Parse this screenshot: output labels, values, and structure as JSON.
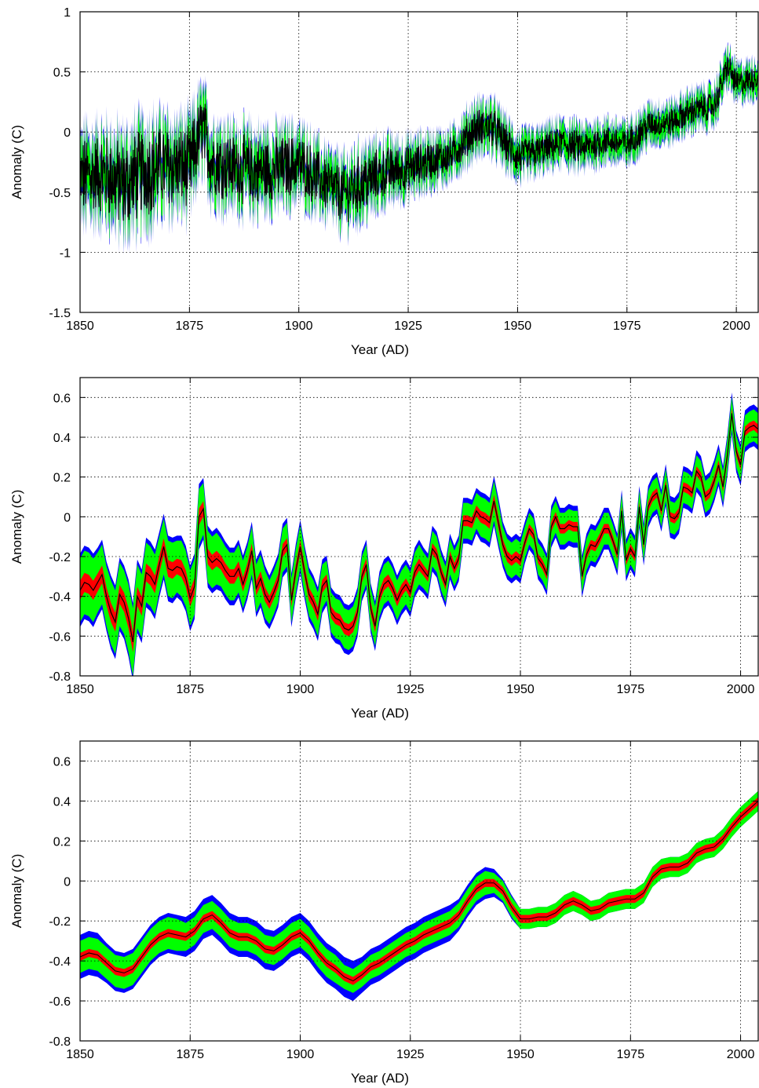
{
  "colors": {
    "outer_band": "#0000ff",
    "mid_band": "#00ff00",
    "inner_band": "#ff0000",
    "center_line": "#000000",
    "grid": "#000000"
  },
  "chart_data": [
    {
      "type": "line",
      "title": "",
      "subtitle": "",
      "xlabel": "Year (AD)",
      "ylabel": "Anomaly (C)",
      "xlim": [
        1850,
        2005
      ],
      "ylim": [
        -1.5,
        1
      ],
      "x_ticks": [
        1850,
        1875,
        1900,
        1925,
        1950,
        1975,
        2000
      ],
      "y_ticks": [
        -1.5,
        -1,
        -0.5,
        0,
        0.5,
        1
      ],
      "x_tick_labels": [
        "1850",
        "1875",
        "1900",
        "1925",
        "1950",
        "1975",
        "2000"
      ],
      "y_tick_labels": [
        "-1.5",
        "-1",
        "-0.5",
        "0",
        "0.5",
        "1"
      ],
      "grid": true,
      "resolution": "monthly",
      "x": [
        1850,
        1855,
        1860,
        1865,
        1870,
        1875,
        1878,
        1880,
        1885,
        1890,
        1895,
        1900,
        1905,
        1910,
        1915,
        1920,
        1925,
        1930,
        1935,
        1940,
        1944,
        1950,
        1955,
        1960,
        1965,
        1970,
        1975,
        1980,
        1985,
        1990,
        1995,
        1998,
        2000,
        2005
      ],
      "series": [
        {
          "role": "center",
          "values": [
            -0.38,
            -0.34,
            -0.44,
            -0.32,
            -0.28,
            -0.3,
            0.05,
            -0.24,
            -0.29,
            -0.33,
            -0.31,
            -0.26,
            -0.4,
            -0.52,
            -0.42,
            -0.33,
            -0.3,
            -0.24,
            -0.19,
            0.02,
            0.05,
            -0.21,
            -0.16,
            -0.09,
            -0.13,
            -0.07,
            -0.1,
            0.06,
            0.08,
            0.18,
            0.22,
            0.55,
            0.4,
            0.45
          ]
        },
        {
          "role": "band_95_half_width",
          "values": [
            0.4,
            0.4,
            0.45,
            0.45,
            0.4,
            0.4,
            0.35,
            0.35,
            0.33,
            0.35,
            0.32,
            0.3,
            0.28,
            0.28,
            0.3,
            0.25,
            0.22,
            0.2,
            0.18,
            0.2,
            0.2,
            0.18,
            0.16,
            0.16,
            0.16,
            0.15,
            0.15,
            0.14,
            0.14,
            0.14,
            0.14,
            0.14,
            0.13,
            0.13
          ]
        }
      ]
    },
    {
      "type": "line",
      "title": "",
      "subtitle": "",
      "xlabel": "Year (AD)",
      "ylabel": "Anomaly (C)",
      "xlim": [
        1850,
        2004
      ],
      "ylim": [
        -0.8,
        0.7
      ],
      "x_ticks": [
        1850,
        1875,
        1900,
        1925,
        1950,
        1975,
        2000
      ],
      "y_ticks": [
        -0.8,
        -0.6,
        -0.4,
        -0.2,
        0,
        0.2,
        0.4,
        0.6
      ],
      "x_tick_labels": [
        "1850",
        "1875",
        "1900",
        "1925",
        "1950",
        "1975",
        "2000"
      ],
      "y_tick_labels": [
        "-0.8",
        "-0.6",
        "-0.4",
        "-0.2",
        "0",
        "0.2",
        "0.4",
        "0.6"
      ],
      "grid": true,
      "resolution": "annual",
      "x": [
        1850,
        1851,
        1852,
        1853,
        1854,
        1855,
        1856,
        1857,
        1858,
        1859,
        1860,
        1861,
        1862,
        1863,
        1864,
        1865,
        1866,
        1867,
        1868,
        1869,
        1870,
        1871,
        1872,
        1873,
        1874,
        1875,
        1876,
        1877,
        1878,
        1879,
        1880,
        1881,
        1882,
        1883,
        1884,
        1885,
        1886,
        1887,
        1888,
        1889,
        1890,
        1891,
        1892,
        1893,
        1894,
        1895,
        1896,
        1897,
        1898,
        1899,
        1900,
        1901,
        1902,
        1903,
        1904,
        1905,
        1906,
        1907,
        1908,
        1909,
        1910,
        1911,
        1912,
        1913,
        1914,
        1915,
        1916,
        1917,
        1918,
        1919,
        1920,
        1921,
        1922,
        1923,
        1924,
        1925,
        1926,
        1927,
        1928,
        1929,
        1930,
        1931,
        1932,
        1933,
        1934,
        1935,
        1936,
        1937,
        1938,
        1939,
        1940,
        1941,
        1942,
        1943,
        1944,
        1945,
        1946,
        1947,
        1948,
        1949,
        1950,
        1951,
        1952,
        1953,
        1954,
        1955,
        1956,
        1957,
        1958,
        1959,
        1960,
        1961,
        1962,
        1963,
        1964,
        1965,
        1966,
        1967,
        1968,
        1969,
        1970,
        1971,
        1972,
        1973,
        1974,
        1975,
        1976,
        1977,
        1978,
        1979,
        1980,
        1981,
        1982,
        1983,
        1984,
        1985,
        1986,
        1987,
        1988,
        1989,
        1990,
        1991,
        1992,
        1993,
        1994,
        1995,
        1996,
        1997,
        1998,
        1999,
        2000,
        2001,
        2002,
        2003,
        2004
      ],
      "series": [
        {
          "role": "center",
          "values": [
            -0.37,
            -0.33,
            -0.34,
            -0.37,
            -0.33,
            -0.29,
            -0.4,
            -0.48,
            -0.53,
            -0.39,
            -0.43,
            -0.51,
            -0.63,
            -0.4,
            -0.45,
            -0.28,
            -0.3,
            -0.34,
            -0.24,
            -0.15,
            -0.26,
            -0.27,
            -0.25,
            -0.26,
            -0.31,
            -0.41,
            -0.35,
            0.0,
            0.04,
            -0.2,
            -0.23,
            -0.21,
            -0.23,
            -0.27,
            -0.3,
            -0.3,
            -0.26,
            -0.34,
            -0.27,
            -0.17,
            -0.36,
            -0.31,
            -0.39,
            -0.43,
            -0.38,
            -0.32,
            -0.17,
            -0.14,
            -0.42,
            -0.27,
            -0.15,
            -0.28,
            -0.39,
            -0.43,
            -0.49,
            -0.35,
            -0.32,
            -0.48,
            -0.51,
            -0.52,
            -0.56,
            -0.57,
            -0.55,
            -0.48,
            -0.3,
            -0.24,
            -0.46,
            -0.55,
            -0.4,
            -0.34,
            -0.32,
            -0.36,
            -0.42,
            -0.37,
            -0.34,
            -0.38,
            -0.28,
            -0.24,
            -0.27,
            -0.3,
            -0.16,
            -0.19,
            -0.28,
            -0.34,
            -0.2,
            -0.26,
            -0.21,
            -0.02,
            -0.02,
            -0.03,
            0.03,
            0.0,
            -0.01,
            -0.03,
            0.08,
            -0.03,
            -0.14,
            -0.2,
            -0.22,
            -0.2,
            -0.22,
            -0.13,
            -0.06,
            -0.09,
            -0.21,
            -0.24,
            -0.29,
            -0.05,
            0.0,
            -0.06,
            -0.06,
            -0.04,
            -0.05,
            -0.05,
            -0.3,
            -0.19,
            -0.14,
            -0.15,
            -0.11,
            -0.06,
            -0.06,
            -0.12,
            -0.19,
            0.03,
            -0.22,
            -0.16,
            -0.2,
            0.05,
            -0.14,
            0.05,
            0.1,
            0.12,
            0.03,
            0.16,
            0.0,
            -0.01,
            0.02,
            0.15,
            0.14,
            0.12,
            0.23,
            0.2,
            0.1,
            0.12,
            0.18,
            0.26,
            0.15,
            0.31,
            0.52,
            0.33,
            0.26,
            0.43,
            0.45,
            0.46,
            0.44
          ]
        },
        {
          "role": "band_95_half_width",
          "values": [
            0.16,
            0.16,
            0.16,
            0.16,
            0.15,
            0.15,
            0.15,
            0.16,
            0.16,
            0.16,
            0.16,
            0.17,
            0.17,
            0.16,
            0.16,
            0.15,
            0.15,
            0.15,
            0.14,
            0.14,
            0.14,
            0.14,
            0.13,
            0.14,
            0.14,
            0.14,
            0.14,
            0.14,
            0.13,
            0.13,
            0.13,
            0.13,
            0.12,
            0.12,
            0.12,
            0.12,
            0.12,
            0.12,
            0.12,
            0.12,
            0.12,
            0.12,
            0.12,
            0.11,
            0.11,
            0.11,
            0.11,
            0.11,
            0.11,
            0.11,
            0.11,
            0.11,
            0.11,
            0.11,
            0.11,
            0.11,
            0.1,
            0.1,
            0.1,
            0.1,
            0.1,
            0.1,
            0.1,
            0.1,
            0.1,
            0.1,
            0.1,
            0.1,
            0.1,
            0.1,
            0.1,
            0.1,
            0.1,
            0.1,
            0.1,
            0.1,
            0.1,
            0.1,
            0.09,
            0.09,
            0.09,
            0.09,
            0.09,
            0.09,
            0.09,
            0.09,
            0.09,
            0.09,
            0.09,
            0.09,
            0.09,
            0.1,
            0.1,
            0.1,
            0.1,
            0.1,
            0.09,
            0.09,
            0.09,
            0.09,
            0.09,
            0.08,
            0.08,
            0.08,
            0.08,
            0.08,
            0.08,
            0.08,
            0.08,
            0.08,
            0.08,
            0.08,
            0.08,
            0.08,
            0.08,
            0.08,
            0.08,
            0.08,
            0.08,
            0.08,
            0.08,
            0.08,
            0.08,
            0.08,
            0.08,
            0.08,
            0.08,
            0.08,
            0.08,
            0.08,
            0.08,
            0.08,
            0.08,
            0.08,
            0.08,
            0.08,
            0.08,
            0.08,
            0.08,
            0.08,
            0.08,
            0.08,
            0.08,
            0.08,
            0.08,
            0.08,
            0.08,
            0.08,
            0.08,
            0.08,
            0.08,
            0.08,
            0.08,
            0.08,
            0.08
          ]
        }
      ]
    },
    {
      "type": "line",
      "title": "",
      "subtitle": "",
      "xlabel": "Year (AD)",
      "ylabel": "Anomaly (C)",
      "xlim": [
        1850,
        2004
      ],
      "ylim": [
        -0.8,
        0.7
      ],
      "x_ticks": [
        1850,
        1875,
        1900,
        1925,
        1950,
        1975,
        2000
      ],
      "y_ticks": [
        -0.8,
        -0.6,
        -0.4,
        -0.2,
        0,
        0.2,
        0.4,
        0.6
      ],
      "x_tick_labels": [
        "1850",
        "1875",
        "1900",
        "1925",
        "1950",
        "1975",
        "2000"
      ],
      "y_tick_labels": [
        "-0.8",
        "-0.6",
        "-0.4",
        "-0.2",
        "0",
        "0.2",
        "0.4",
        "0.6"
      ],
      "grid": true,
      "resolution": "smoothed",
      "x": [
        1850,
        1852,
        1854,
        1856,
        1858,
        1860,
        1862,
        1864,
        1866,
        1868,
        1870,
        1872,
        1874,
        1876,
        1878,
        1880,
        1882,
        1884,
        1886,
        1888,
        1890,
        1892,
        1894,
        1896,
        1898,
        1900,
        1902,
        1904,
        1906,
        1908,
        1910,
        1912,
        1914,
        1916,
        1918,
        1920,
        1922,
        1924,
        1926,
        1928,
        1930,
        1932,
        1934,
        1936,
        1938,
        1940,
        1942,
        1944,
        1946,
        1948,
        1950,
        1952,
        1954,
        1956,
        1958,
        1960,
        1962,
        1964,
        1966,
        1968,
        1970,
        1972,
        1974,
        1976,
        1978,
        1980,
        1982,
        1984,
        1986,
        1988,
        1990,
        1992,
        1994,
        1996,
        1998,
        2000,
        2002,
        2004
      ],
      "series": [
        {
          "role": "center",
          "values": [
            -0.38,
            -0.36,
            -0.37,
            -0.41,
            -0.45,
            -0.46,
            -0.44,
            -0.38,
            -0.32,
            -0.28,
            -0.26,
            -0.27,
            -0.28,
            -0.25,
            -0.19,
            -0.17,
            -0.21,
            -0.26,
            -0.28,
            -0.28,
            -0.3,
            -0.34,
            -0.35,
            -0.32,
            -0.28,
            -0.26,
            -0.3,
            -0.36,
            -0.41,
            -0.44,
            -0.48,
            -0.5,
            -0.47,
            -0.43,
            -0.41,
            -0.38,
            -0.35,
            -0.32,
            -0.3,
            -0.27,
            -0.25,
            -0.23,
            -0.21,
            -0.17,
            -0.1,
            -0.04,
            -0.01,
            -0.01,
            -0.05,
            -0.13,
            -0.19,
            -0.19,
            -0.18,
            -0.18,
            -0.16,
            -0.12,
            -0.1,
            -0.12,
            -0.15,
            -0.14,
            -0.11,
            -0.1,
            -0.09,
            -0.09,
            -0.06,
            0.02,
            0.06,
            0.07,
            0.07,
            0.09,
            0.14,
            0.16,
            0.17,
            0.21,
            0.27,
            0.32,
            0.36,
            0.4
          ]
        },
        {
          "role": "band_green_half_width",
          "values": [
            0.08,
            0.08,
            0.08,
            0.08,
            0.08,
            0.08,
            0.08,
            0.08,
            0.08,
            0.08,
            0.08,
            0.08,
            0.07,
            0.07,
            0.07,
            0.07,
            0.07,
            0.07,
            0.07,
            0.07,
            0.07,
            0.07,
            0.07,
            0.07,
            0.07,
            0.07,
            0.07,
            0.07,
            0.07,
            0.07,
            0.06,
            0.06,
            0.06,
            0.06,
            0.06,
            0.06,
            0.06,
            0.06,
            0.06,
            0.06,
            0.06,
            0.06,
            0.06,
            0.06,
            0.06,
            0.06,
            0.06,
            0.05,
            0.05,
            0.05,
            0.05,
            0.05,
            0.05,
            0.05,
            0.05,
            0.05,
            0.05,
            0.05,
            0.05,
            0.05,
            0.05,
            0.05,
            0.05,
            0.05,
            0.05,
            0.05,
            0.05,
            0.05,
            0.05,
            0.05,
            0.05,
            0.05,
            0.05,
            0.05,
            0.05,
            0.05,
            0.05,
            0.05
          ]
        },
        {
          "role": "band_blue_half_width",
          "values": [
            0.11,
            0.11,
            0.11,
            0.1,
            0.1,
            0.1,
            0.1,
            0.1,
            0.1,
            0.1,
            0.1,
            0.1,
            0.1,
            0.1,
            0.1,
            0.1,
            0.1,
            0.1,
            0.1,
            0.1,
            0.1,
            0.1,
            0.1,
            0.1,
            0.1,
            0.1,
            0.1,
            0.1,
            0.1,
            0.1,
            0.1,
            0.1,
            0.09,
            0.09,
            0.09,
            0.09,
            0.09,
            0.09,
            0.09,
            0.09,
            0.09,
            0.09,
            0.09,
            0.08,
            0.08,
            0.08,
            0.08,
            0.07,
            0.06,
            0.06,
            0.05,
            0.05,
            0.05,
            0.05,
            0.05,
            0.05,
            0.05,
            0.05,
            0.05,
            0.05,
            0.05,
            0.05,
            0.05,
            0.05,
            0.05,
            0.05,
            0.05,
            0.05,
            0.05,
            0.05,
            0.05,
            0.05,
            0.05,
            0.05,
            0.05,
            0.05,
            0.05,
            0.05
          ]
        },
        {
          "role": "band_red_half_width",
          "values": [
            0.02,
            0.02,
            0.02,
            0.02,
            0.02,
            0.02,
            0.02,
            0.02,
            0.02,
            0.02,
            0.02,
            0.02,
            0.02,
            0.02,
            0.02,
            0.02,
            0.02,
            0.02,
            0.02,
            0.02,
            0.02,
            0.02,
            0.02,
            0.02,
            0.02,
            0.02,
            0.02,
            0.02,
            0.02,
            0.02,
            0.02,
            0.02,
            0.02,
            0.02,
            0.02,
            0.02,
            0.02,
            0.02,
            0.02,
            0.02,
            0.02,
            0.02,
            0.02,
            0.02,
            0.02,
            0.02,
            0.02,
            0.02,
            0.02,
            0.02,
            0.02,
            0.02,
            0.02,
            0.02,
            0.02,
            0.02,
            0.02,
            0.02,
            0.02,
            0.02,
            0.02,
            0.02,
            0.02,
            0.02,
            0.02,
            0.02,
            0.02,
            0.02,
            0.02,
            0.02,
            0.02,
            0.02,
            0.02,
            0.02,
            0.02,
            0.02,
            0.02,
            0.02
          ]
        }
      ]
    }
  ]
}
